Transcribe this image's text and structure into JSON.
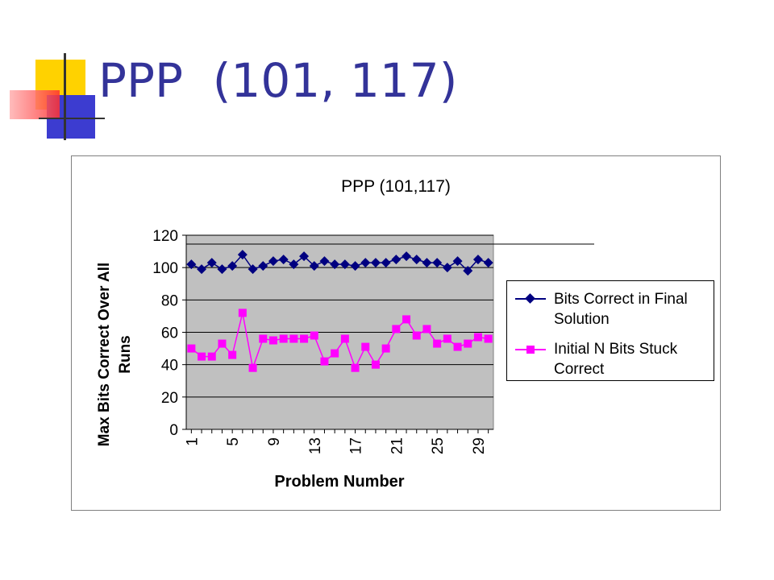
{
  "slide": {
    "title": "PPP  (101, 117)"
  },
  "colors": {
    "title": "#333399",
    "series_final": "#000080",
    "series_initial": "#ff00ff",
    "plot_bg": "#c0c0c0",
    "deco_yellow": "#ffd400",
    "deco_blue": "#3f3fcf",
    "deco_red": "#ff4040"
  },
  "chart_data": {
    "type": "line",
    "title": "PPP (101,117)",
    "xlabel": "Problem Number",
    "ylabel_line1": "Max Bits Correct Over All",
    "ylabel_line2": "Runs",
    "ylim": [
      0,
      120
    ],
    "yticks": [
      0,
      20,
      40,
      60,
      80,
      100,
      120
    ],
    "xticks": [
      1,
      5,
      9,
      13,
      17,
      21,
      25,
      29
    ],
    "x": [
      1,
      2,
      3,
      4,
      5,
      6,
      7,
      8,
      9,
      10,
      11,
      12,
      13,
      14,
      15,
      16,
      17,
      18,
      19,
      20,
      21,
      22,
      23,
      24,
      25,
      26,
      27,
      28,
      29,
      30
    ],
    "grid": true,
    "legend_position": "right",
    "series": [
      {
        "name_line1": "Bits Correct in Final",
        "name_line2": "Solution",
        "marker": "diamond",
        "values": [
          102,
          99,
          103,
          99,
          101,
          108,
          99,
          101,
          104,
          105,
          102,
          107,
          101,
          104,
          102,
          102,
          101,
          103,
          103,
          103,
          105,
          107,
          105,
          103,
          103,
          100,
          104,
          98,
          105,
          103
        ]
      },
      {
        "name_line1": "Initial N Bits Stuck",
        "name_line2": "Correct",
        "marker": "square",
        "values": [
          50,
          45,
          45,
          53,
          46,
          72,
          38,
          56,
          55,
          56,
          56,
          56,
          58,
          42,
          47,
          56,
          38,
          51,
          40,
          50,
          62,
          68,
          58,
          62,
          53,
          56,
          51,
          53,
          57,
          56
        ]
      }
    ]
  }
}
